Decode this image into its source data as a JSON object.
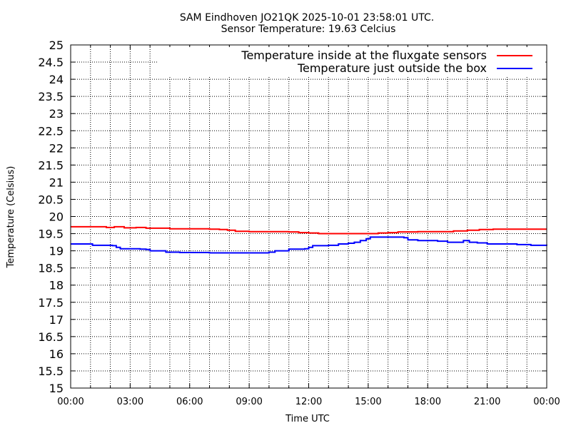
{
  "chart_data": {
    "type": "line",
    "title": "SAM Eindhoven JO21QK 2025-10-01 23:58:01 UTC.",
    "subtitle": "Sensor Temperature: 19.63 Celcius",
    "xlabel": "Time UTC",
    "ylabel": "Temperature (Celsius)",
    "xlim": [
      0,
      24
    ],
    "ylim": [
      15,
      25
    ],
    "grid": true,
    "legend_position": "top-right",
    "x_tick_labels": [
      "00:00",
      "03:00",
      "06:00",
      "09:00",
      "12:00",
      "15:00",
      "18:00",
      "21:00",
      "00:00"
    ],
    "y_tick_labels": [
      "15",
      "15.5",
      "16",
      "16.5",
      "17",
      "17.5",
      "18",
      "18.5",
      "19",
      "19.5",
      "20",
      "20.5",
      "21",
      "21.5",
      "22",
      "22.5",
      "23",
      "23.5",
      "24",
      "24.5",
      "25"
    ],
    "series": [
      {
        "name": "Temperature inside at the fluxgate sensors",
        "color": "#ff0000",
        "points": [
          [
            0,
            19.7
          ],
          [
            1.5,
            19.7
          ],
          [
            1.8,
            19.68
          ],
          [
            2.2,
            19.7
          ],
          [
            2.7,
            19.67
          ],
          [
            3.3,
            19.68
          ],
          [
            3.8,
            19.66
          ],
          [
            4.3,
            19.66
          ],
          [
            5.0,
            19.64
          ],
          [
            6.0,
            19.64
          ],
          [
            7.0,
            19.63
          ],
          [
            7.5,
            19.62
          ],
          [
            7.9,
            19.6
          ],
          [
            8.3,
            19.57
          ],
          [
            9.0,
            19.56
          ],
          [
            10.0,
            19.56
          ],
          [
            11.0,
            19.55
          ],
          [
            11.5,
            19.53
          ],
          [
            12.0,
            19.52
          ],
          [
            12.5,
            19.5
          ],
          [
            13.5,
            19.5
          ],
          [
            14.5,
            19.5
          ],
          [
            15.5,
            19.52
          ],
          [
            16.0,
            19.53
          ],
          [
            16.5,
            19.55
          ],
          [
            17.5,
            19.56
          ],
          [
            18.5,
            19.56
          ],
          [
            19.3,
            19.58
          ],
          [
            20.0,
            19.6
          ],
          [
            20.6,
            19.62
          ],
          [
            21.3,
            19.63
          ],
          [
            22.0,
            19.63
          ],
          [
            23.0,
            19.63
          ],
          [
            24.0,
            19.63
          ]
        ]
      },
      {
        "name": "Temperature just outside the box",
        "color": "#0000ff",
        "points": [
          [
            0,
            19.2
          ],
          [
            0.9,
            19.2
          ],
          [
            1.1,
            19.16
          ],
          [
            2.1,
            19.15
          ],
          [
            2.3,
            19.1
          ],
          [
            2.5,
            19.06
          ],
          [
            3.5,
            19.05
          ],
          [
            3.8,
            19.04
          ],
          [
            4.0,
            19.0
          ],
          [
            4.6,
            19.0
          ],
          [
            4.8,
            18.96
          ],
          [
            5.5,
            18.95
          ],
          [
            7.0,
            18.94
          ],
          [
            8.5,
            18.94
          ],
          [
            9.5,
            18.94
          ],
          [
            10.0,
            18.96
          ],
          [
            10.3,
            19.0
          ],
          [
            11.0,
            19.05
          ],
          [
            11.8,
            19.06
          ],
          [
            12.0,
            19.1
          ],
          [
            12.2,
            19.15
          ],
          [
            13.0,
            19.16
          ],
          [
            13.5,
            19.2
          ],
          [
            14.0,
            19.22
          ],
          [
            14.3,
            19.25
          ],
          [
            14.6,
            19.3
          ],
          [
            14.9,
            19.35
          ],
          [
            15.1,
            19.4
          ],
          [
            16.0,
            19.4
          ],
          [
            16.8,
            19.38
          ],
          [
            17.0,
            19.32
          ],
          [
            17.5,
            19.3
          ],
          [
            18.0,
            19.3
          ],
          [
            18.5,
            19.28
          ],
          [
            19.0,
            19.25
          ],
          [
            19.5,
            19.25
          ],
          [
            19.8,
            19.3
          ],
          [
            20.1,
            19.25
          ],
          [
            20.5,
            19.23
          ],
          [
            21.0,
            19.2
          ],
          [
            22.0,
            19.2
          ],
          [
            22.5,
            19.18
          ],
          [
            23.2,
            19.16
          ],
          [
            24.0,
            19.15
          ]
        ]
      }
    ]
  }
}
